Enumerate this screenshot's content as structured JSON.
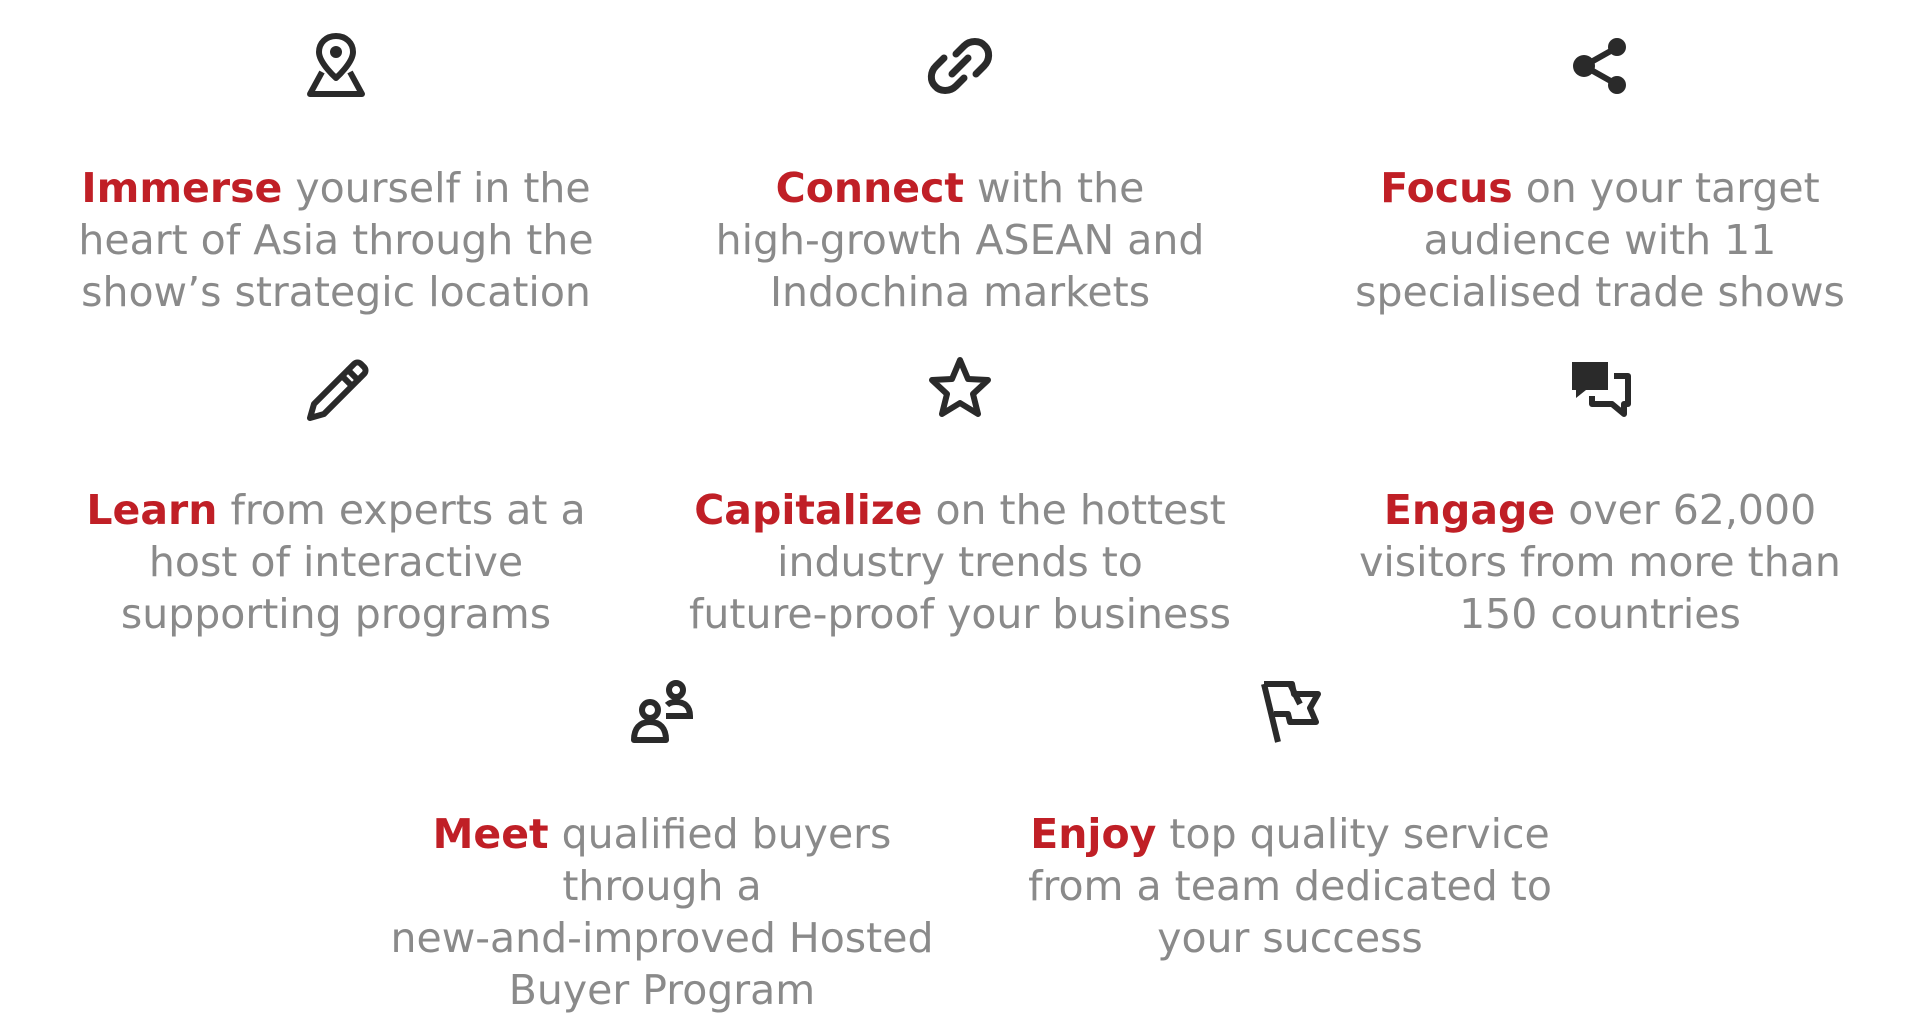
{
  "colors": {
    "accent": "#c01f26",
    "body_text": "#8a8a8a",
    "icon": "#2a2a2a",
    "background": "#ffffff"
  },
  "features": [
    {
      "icon": "map-pin-icon",
      "keyword": "Immerse",
      "line1_rest": " yourself in the",
      "lines": [
        "heart of Asia through the",
        "show’s strategic location"
      ]
    },
    {
      "icon": "link-icon",
      "keyword": "Connect",
      "line1_rest": " with the",
      "lines": [
        "high-growth ASEAN and",
        "Indochina markets"
      ]
    },
    {
      "icon": "share-icon",
      "keyword": "Focus",
      "line1_rest": " on your target",
      "lines": [
        "audience with 11",
        "specialised trade shows"
      ]
    },
    {
      "icon": "pencil-icon",
      "keyword": "Learn",
      "line1_rest": " from experts at a",
      "lines": [
        "host of interactive",
        "supporting programs"
      ]
    },
    {
      "icon": "star-icon",
      "keyword": "Capitalize",
      "line1_rest": " on the hottest",
      "lines": [
        "industry trends to",
        "future-proof your business"
      ]
    },
    {
      "icon": "chat-bubbles-icon",
      "keyword": "Engage",
      "line1_rest": " over 62,000",
      "lines": [
        "visitors from more than",
        "150 countries"
      ]
    },
    {
      "icon": "users-icon",
      "keyword": "Meet",
      "line1_rest": " qualified buyers",
      "lines": [
        "through a",
        "new-and-improved Hosted",
        "Buyer Program"
      ]
    },
    {
      "icon": "flag-icon",
      "keyword": "Enjoy",
      "line1_rest": " top quality service",
      "lines": [
        "from a team dedicated to",
        "your success"
      ]
    }
  ]
}
